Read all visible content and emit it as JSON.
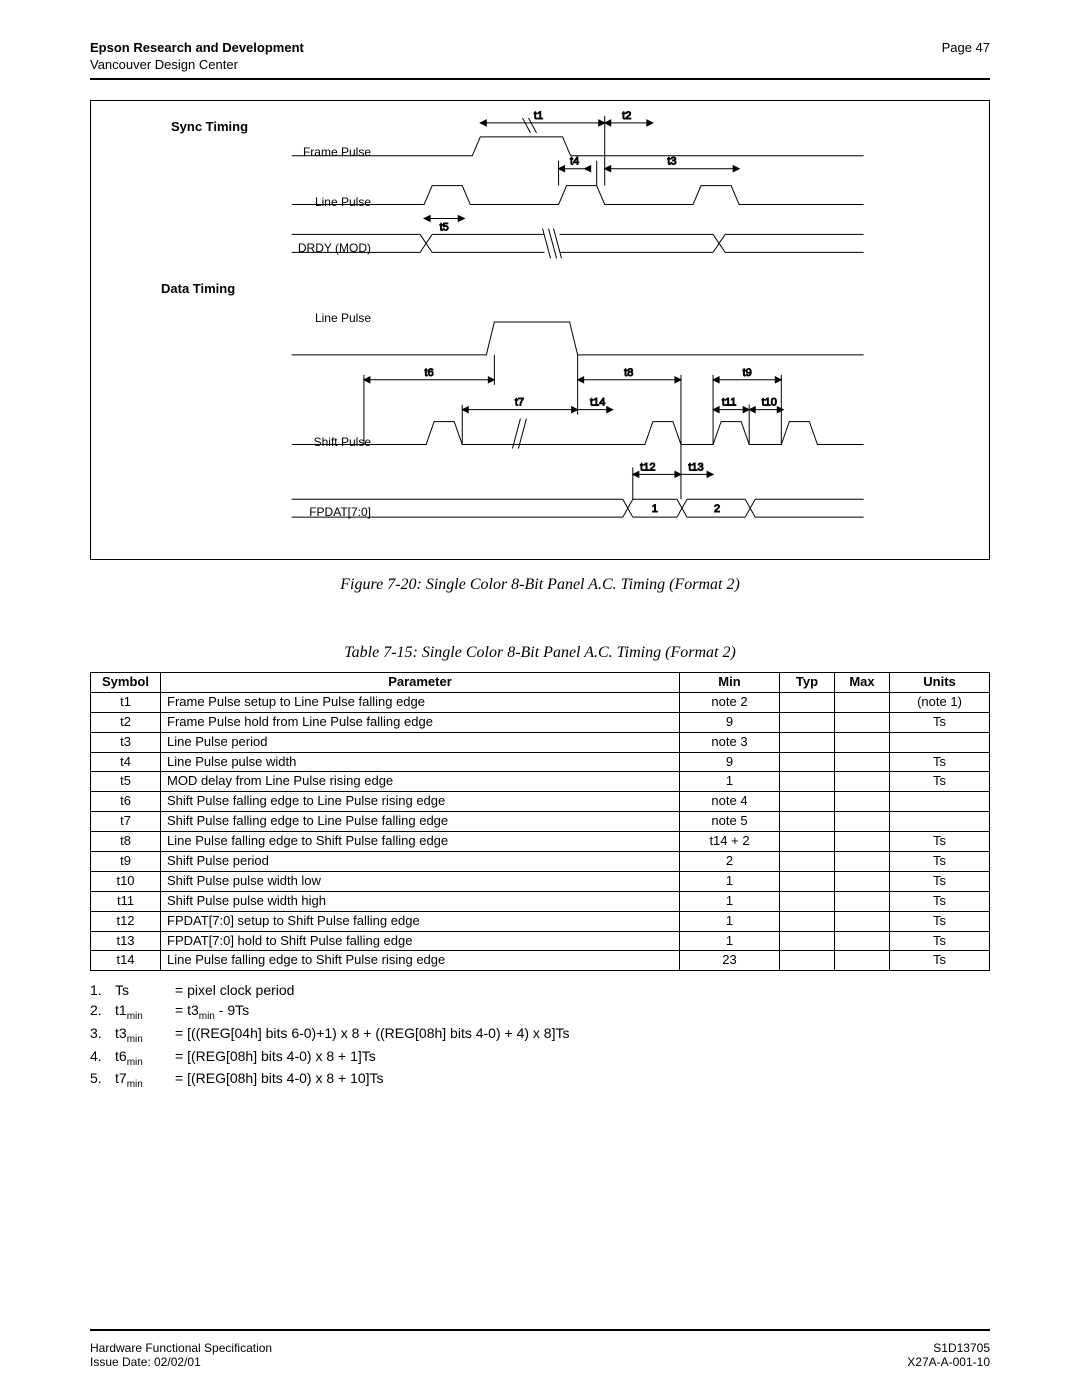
{
  "header": {
    "left_bold": "Epson Research and Development",
    "left_sub": "Vancouver Design Center",
    "right": "Page 47"
  },
  "diagram": {
    "sync_title": "Sync Timing",
    "data_title": "Data Timing",
    "labels": {
      "frame_pulse": "Frame Pulse",
      "line_pulse": "Line Pulse",
      "drdy": "DRDY (MOD)",
      "line_pulse2": "Line Pulse",
      "shift_pulse": "Shift Pulse",
      "fpdat": "FPDAT[7:0]"
    },
    "markers": {
      "t1": "t1",
      "t2": "t2",
      "t3": "t3",
      "t4": "t4",
      "t5": "t5",
      "t6": "t6",
      "t7": "t7",
      "t8": "t8",
      "t9": "t9",
      "t10": "t10",
      "t11": "t11",
      "t12": "t12",
      "t13": "t13",
      "t14": "t14",
      "d1": "1",
      "d2": "2"
    }
  },
  "figure_caption": "Figure 7-20: Single Color 8-Bit Panel A.C. Timing (Format 2)",
  "table_caption": "Table 7-15: Single Color 8-Bit Panel A.C. Timing (Format 2)",
  "table": {
    "headers": {
      "symbol": "Symbol",
      "parameter": "Parameter",
      "min": "Min",
      "typ": "Typ",
      "max": "Max",
      "units": "Units"
    },
    "rows": [
      {
        "sym": "t1",
        "param": "Frame Pulse setup to Line Pulse falling edge",
        "min": "note 2",
        "typ": "",
        "max": "",
        "units": "(note 1)"
      },
      {
        "sym": "t2",
        "param": "Frame Pulse hold from Line Pulse falling edge",
        "min": "9",
        "typ": "",
        "max": "",
        "units": "Ts"
      },
      {
        "sym": "t3",
        "param": "Line Pulse period",
        "min": "note 3",
        "typ": "",
        "max": "",
        "units": ""
      },
      {
        "sym": "t4",
        "param": "Line Pulse pulse width",
        "min": "9",
        "typ": "",
        "max": "",
        "units": "Ts"
      },
      {
        "sym": "t5",
        "param": "MOD delay from Line Pulse rising edge",
        "min": "1",
        "typ": "",
        "max": "",
        "units": "Ts"
      },
      {
        "sym": "t6",
        "param": "Shift Pulse falling edge to Line Pulse rising edge",
        "min": "note 4",
        "typ": "",
        "max": "",
        "units": ""
      },
      {
        "sym": "t7",
        "param": "Shift Pulse falling edge to Line Pulse falling edge",
        "min": "note 5",
        "typ": "",
        "max": "",
        "units": ""
      },
      {
        "sym": "t8",
        "param": "Line Pulse falling edge to Shift Pulse falling edge",
        "min": "t14 + 2",
        "typ": "",
        "max": "",
        "units": "Ts"
      },
      {
        "sym": "t9",
        "param": "Shift Pulse period",
        "min": "2",
        "typ": "",
        "max": "",
        "units": "Ts"
      },
      {
        "sym": "t10",
        "param": "Shift Pulse pulse width low",
        "min": "1",
        "typ": "",
        "max": "",
        "units": "Ts"
      },
      {
        "sym": "t11",
        "param": "Shift Pulse pulse width high",
        "min": "1",
        "typ": "",
        "max": "",
        "units": "Ts"
      },
      {
        "sym": "t12",
        "param": "FPDAT[7:0] setup to Shift Pulse falling edge",
        "min": "1",
        "typ": "",
        "max": "",
        "units": "Ts"
      },
      {
        "sym": "t13",
        "param": "FPDAT[7:0] hold to Shift Pulse falling edge",
        "min": "1",
        "typ": "",
        "max": "",
        "units": "Ts"
      },
      {
        "sym": "t14",
        "param": "Line Pulse falling edge to Shift Pulse rising edge",
        "min": "23",
        "typ": "",
        "max": "",
        "units": "Ts"
      }
    ]
  },
  "notes": [
    {
      "num": "1.",
      "sym": "Ts",
      "eq": "= pixel clock period"
    },
    {
      "num": "2.",
      "sym_html": "t1<sub>min</sub>",
      "eq_html": "= t3<sub>min</sub> - 9Ts"
    },
    {
      "num": "3.",
      "sym_html": "t3<sub>min</sub>",
      "eq_html": "= [((REG[04h] bits 6-0)+1) x 8 + ((REG[08h] bits 4-0) + 4) x 8]Ts"
    },
    {
      "num": "4.",
      "sym_html": "t6<sub>min</sub>",
      "eq_html": "= [(REG[08h] bits 4-0) x 8 + 1]Ts"
    },
    {
      "num": "5.",
      "sym_html": "t7<sub>min</sub>",
      "eq_html": "= [(REG[08h] bits 4-0) x 8 + 10]Ts"
    }
  ],
  "footer": {
    "left1": "Hardware Functional Specification",
    "left2": "Issue Date: 02/02/01",
    "right1": "S1D13705",
    "right2": "X27A-A-001-10"
  }
}
